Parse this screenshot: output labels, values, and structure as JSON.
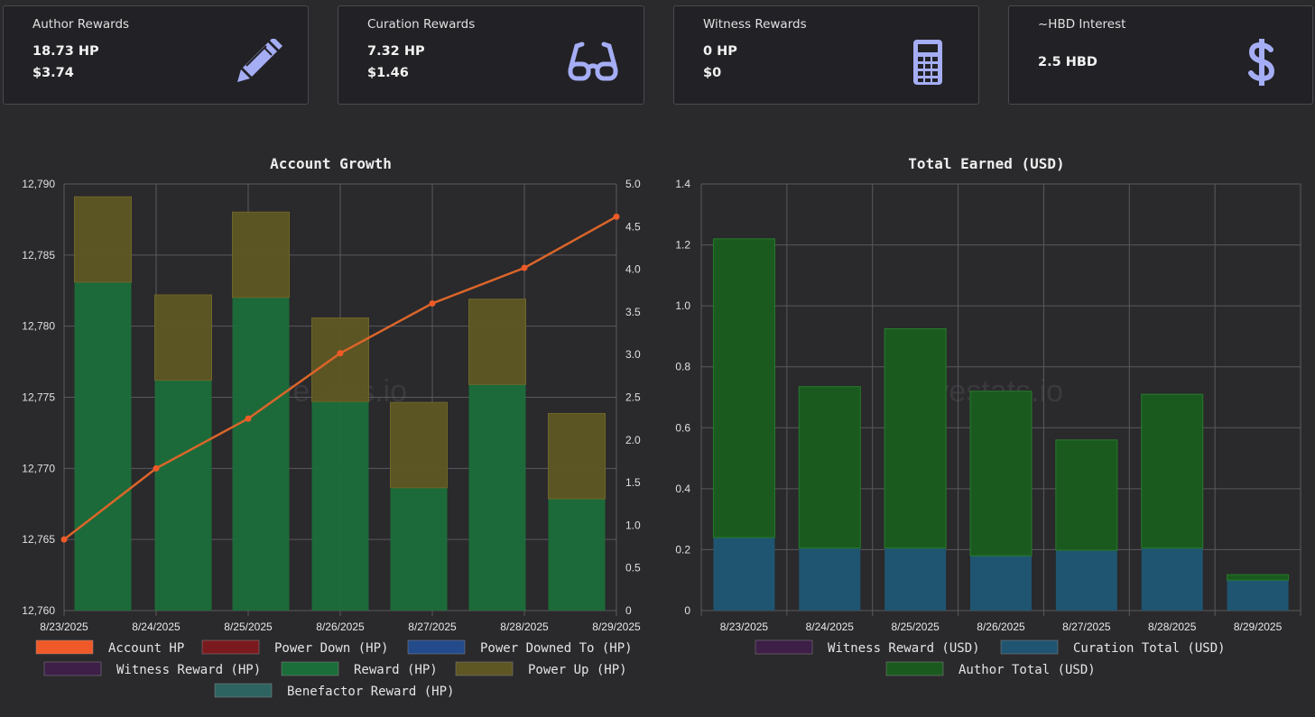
{
  "cards": [
    {
      "label": "Author Rewards",
      "line1": "18.73 HP",
      "line2": "$3.74",
      "icon": "pencil-icon"
    },
    {
      "label": "Curation Rewards",
      "line1": "7.32 HP",
      "line2": "$1.46",
      "icon": "glasses-icon"
    },
    {
      "label": "Witness Rewards",
      "line1": "0 HP",
      "line2": "$0",
      "icon": "calculator-icon"
    },
    {
      "label": "~HBD Interest",
      "line1": "2.5 HBD",
      "line2": "",
      "icon": "dollar-icon"
    }
  ],
  "colors": {
    "accent_icon": "#a5adf5",
    "account_hp": "#f05a28",
    "reward": "#1b6e3a",
    "power_up": "#5e5623",
    "author_total": "#1b5a1f",
    "curation_total": "#1f5570",
    "watermark": "#3a393d"
  },
  "watermark": "hivestats.io",
  "chart_data": [
    {
      "type": "bar",
      "title": "Account Growth",
      "categories": [
        "8/23/2025",
        "8/24/2025",
        "8/25/2025",
        "8/26/2025",
        "8/27/2025",
        "8/28/2025",
        "8/29/2025"
      ],
      "y_left_ticks": [
        "12,760",
        "12,765",
        "12,770",
        "12,775",
        "12,780",
        "12,785",
        "12,790"
      ],
      "y_left_range": [
        12760,
        12790
      ],
      "y_right_ticks": [
        "0",
        "0.5",
        "1.0",
        "1.5",
        "2.0",
        "2.5",
        "3.0",
        "3.5",
        "4.0",
        "4.5",
        "5.0"
      ],
      "y_right_range": [
        0,
        5
      ],
      "series": [
        {
          "name": "Account HP",
          "axis": "left",
          "kind": "line",
          "values": [
            12765.0,
            12770.0,
            12773.5,
            12778.1,
            12781.6,
            12784.1,
            12787.7
          ]
        },
        {
          "name": "Reward (HP)",
          "axis": "right",
          "kind": "bar",
          "values": [
            3.85,
            2.7,
            3.67,
            2.45,
            1.44,
            2.65,
            1.31
          ]
        },
        {
          "name": "Power Up (HP)",
          "axis": "right",
          "kind": "bar",
          "values": [
            1.0,
            1.0,
            1.0,
            0.98,
            1.0,
            1.0,
            1.0
          ]
        }
      ],
      "legend": [
        {
          "label": "Account HP",
          "color": "#f05a28"
        },
        {
          "label": "Power Down (HP)",
          "color": "#7a1a1f"
        },
        {
          "label": "Power Downed To (HP)",
          "color": "#234a8a"
        },
        {
          "label": "Witness Reward (HP)",
          "color": "#3d1f48"
        },
        {
          "label": "Reward (HP)",
          "color": "#1b6e3a"
        },
        {
          "label": "Power Up (HP)",
          "color": "#5e5623"
        },
        {
          "label": "Benefactor Reward (HP)",
          "color": "#2d6461"
        }
      ]
    },
    {
      "type": "bar",
      "title": "Total Earned (USD)",
      "categories": [
        "8/23/2025",
        "8/24/2025",
        "8/25/2025",
        "8/26/2025",
        "8/27/2025",
        "8/28/2025",
        "8/29/2025"
      ],
      "y_ticks": [
        "0",
        "0.2",
        "0.4",
        "0.6",
        "0.8",
        "1.0",
        "1.2",
        "1.4"
      ],
      "y_range": [
        0,
        1.4
      ],
      "series": [
        {
          "name": "Curation Total (USD)",
          "values": [
            0.24,
            0.205,
            0.205,
            0.18,
            0.198,
            0.205,
            0.1
          ]
        },
        {
          "name": "Author Total (USD)",
          "values": [
            0.98,
            0.53,
            0.72,
            0.54,
            0.362,
            0.505,
            0.018
          ]
        }
      ],
      "legend": [
        {
          "label": "Witness Reward (USD)",
          "color": "#3d1f48"
        },
        {
          "label": "Curation Total (USD)",
          "color": "#1f5570"
        },
        {
          "label": "Author Total (USD)",
          "color": "#1b5a1f"
        }
      ]
    }
  ]
}
